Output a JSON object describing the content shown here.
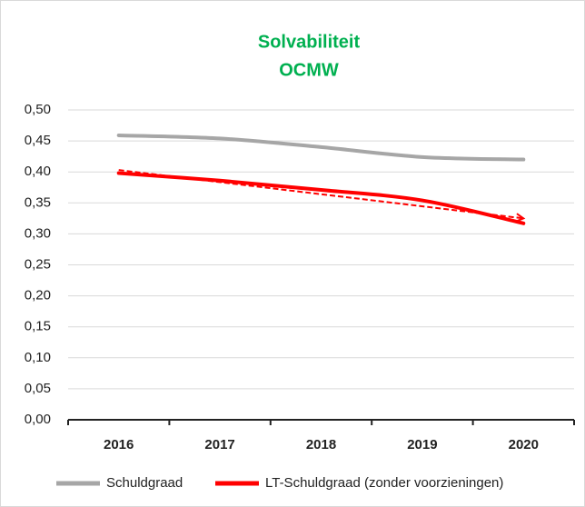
{
  "chart_data": {
    "type": "line",
    "title": [
      "Solvabiliteit",
      "OCMW"
    ],
    "title_color": "#00b050",
    "categories": [
      "2016",
      "2017",
      "2018",
      "2019",
      "2020"
    ],
    "series": [
      {
        "name": "Schuldgraad",
        "color": "#a6a6a6",
        "values": [
          0.459,
          0.454,
          0.44,
          0.424,
          0.42
        ]
      },
      {
        "name": "LT-Schuldgraad (zonder voorzieningen)",
        "color": "#ff0000",
        "values": [
          0.398,
          0.386,
          0.371,
          0.354,
          0.317
        ]
      }
    ],
    "trendline": {
      "color": "#ff0000",
      "style": "dashed",
      "values": [
        0.403,
        0.325
      ]
    },
    "ylim": [
      0,
      0.5
    ],
    "yticks": [
      {
        "value": 0,
        "label": "0,00"
      },
      {
        "value": 0.05,
        "label": "0,05"
      },
      {
        "value": 0.1,
        "label": "0,10"
      },
      {
        "value": 0.15,
        "label": "0,15"
      },
      {
        "value": 0.2,
        "label": "0,20"
      },
      {
        "value": 0.25,
        "label": "0,25"
      },
      {
        "value": 0.3,
        "label": "0,30"
      },
      {
        "value": 0.35,
        "label": "0,35"
      },
      {
        "value": 0.4,
        "label": "0,40"
      },
      {
        "value": 0.45,
        "label": "0,45"
      },
      {
        "value": 0.5,
        "label": "0,50"
      }
    ],
    "grid": true,
    "legend": "bottom"
  }
}
